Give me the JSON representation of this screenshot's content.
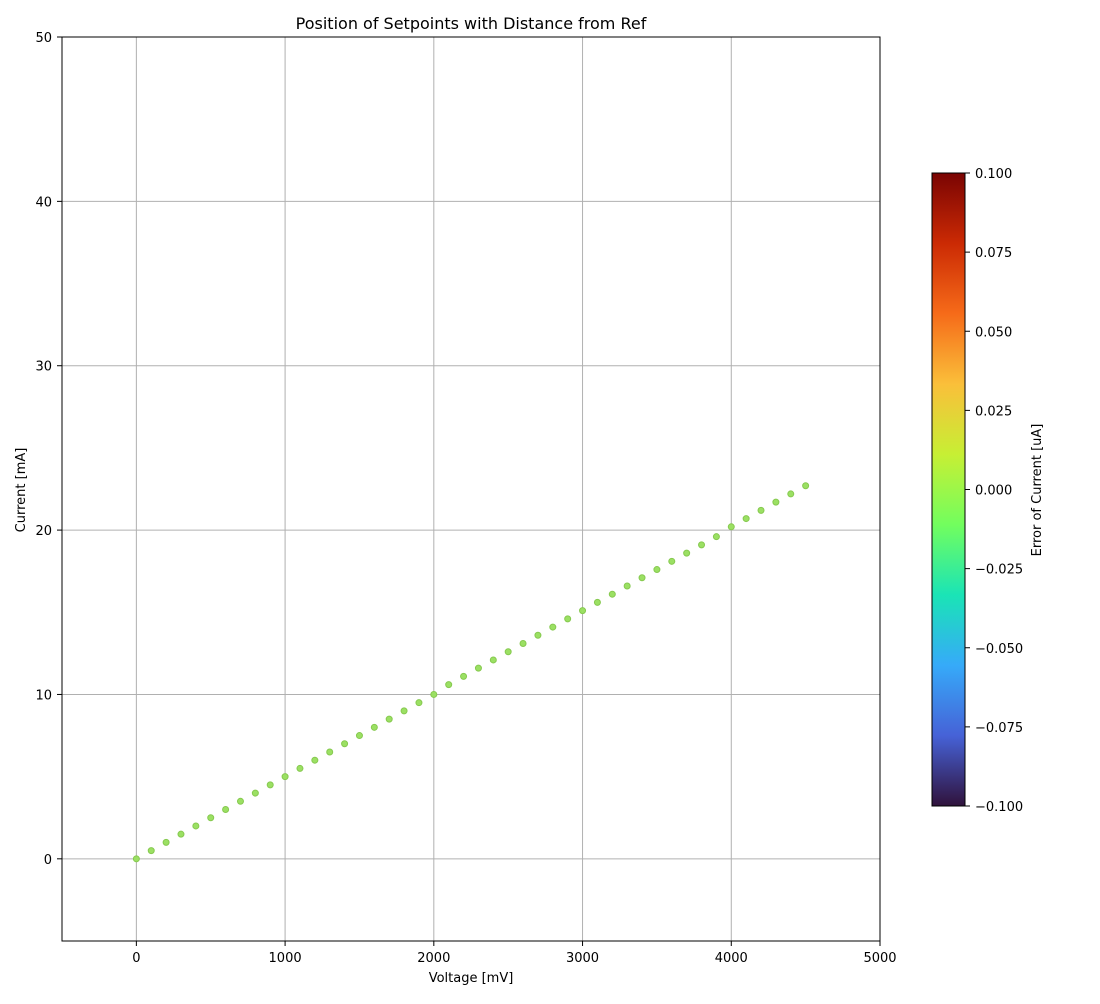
{
  "chart_data": {
    "type": "scatter",
    "title": "Position of Setpoints with Distance from Ref",
    "xlabel": "Voltage [mV]",
    "ylabel": "Current [mA]",
    "xlim": [
      -500,
      5000
    ],
    "ylim": [
      -5,
      50
    ],
    "x_ticks": [
      0,
      1000,
      2000,
      3000,
      4000,
      5000
    ],
    "y_ticks": [
      0,
      10,
      20,
      30,
      40,
      50
    ],
    "x_tick_labels": [
      "0",
      "1000",
      "2000",
      "3000",
      "4000",
      "5000"
    ],
    "y_tick_labels": [
      "0",
      "10",
      "20",
      "30",
      "40",
      "50"
    ],
    "grid": true,
    "marker_color": "#9be063",
    "marker_edge_color": "#86c94f",
    "x": [
      0,
      100,
      200,
      300,
      400,
      500,
      600,
      700,
      800,
      900,
      1000,
      1100,
      1200,
      1300,
      1400,
      1500,
      1600,
      1700,
      1800,
      1900,
      2000,
      2100,
      2200,
      2300,
      2400,
      2500,
      2600,
      2700,
      2800,
      2900,
      3000,
      3100,
      3200,
      3300,
      3400,
      3500,
      3600,
      3700,
      3800,
      3900,
      4000,
      4100,
      4200,
      4300,
      4400,
      4500
    ],
    "y": [
      0.0,
      0.5,
      1.0,
      1.5,
      2.0,
      2.5,
      3.0,
      3.5,
      4.0,
      4.5,
      5.0,
      5.5,
      6.0,
      6.5,
      7.0,
      7.5,
      8.0,
      8.5,
      9.0,
      9.5,
      10.0,
      10.6,
      11.1,
      11.6,
      12.1,
      12.6,
      13.1,
      13.6,
      14.1,
      14.6,
      15.1,
      15.6,
      16.1,
      16.6,
      17.1,
      17.6,
      18.1,
      18.6,
      19.1,
      19.6,
      20.2,
      20.7,
      21.2,
      21.7,
      22.2,
      22.7
    ],
    "error_values": [
      0,
      0,
      0,
      0,
      0,
      0,
      0,
      0,
      0,
      0,
      0,
      0,
      0,
      0,
      0,
      0,
      0,
      0,
      0,
      0,
      0,
      0,
      0,
      0,
      0,
      0,
      0,
      0,
      0,
      0,
      0,
      0,
      0,
      0,
      0,
      0,
      0,
      0,
      0,
      0,
      0,
      0,
      0,
      0,
      0,
      0
    ],
    "colorbar": {
      "label": "Error of Current [uA]",
      "range": [
        -0.1,
        0.1
      ],
      "ticks": [
        -0.1,
        -0.075,
        -0.05,
        -0.025,
        0.0,
        0.025,
        0.05,
        0.075,
        0.1
      ],
      "tick_labels": [
        "−0.100",
        "−0.075",
        "−0.050",
        "−0.025",
        "0.000",
        "0.025",
        "0.050",
        "0.075",
        "0.100"
      ],
      "colormap": "turbo",
      "stops": [
        "#30123b",
        "#4662d7",
        "#36aaf9",
        "#1ae4b6",
        "#72fe5e",
        "#c7ef34",
        "#fabf3a",
        "#f66b19",
        "#cb2a04",
        "#7a0403"
      ]
    }
  }
}
